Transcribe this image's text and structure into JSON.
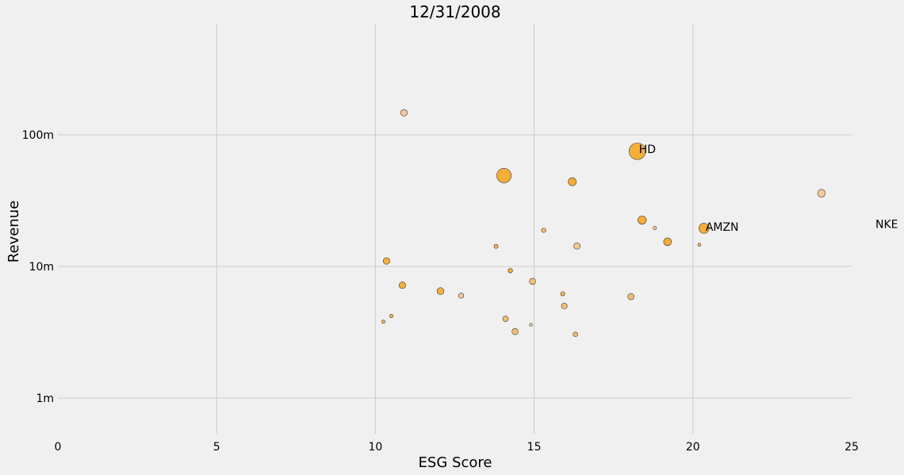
{
  "chart_data": {
    "type": "scatter",
    "title": "12/31/2008",
    "xlabel": "ESG Score",
    "ylabel": "Revenue",
    "xlim": [
      0,
      25
    ],
    "ylim": [
      500000,
      700000000
    ],
    "yscale": "log",
    "grid": true,
    "x_ticks": [
      0,
      5,
      10,
      15,
      20,
      25
    ],
    "x_tick_labels": [
      "0",
      "5",
      "10",
      "15",
      "20",
      "25"
    ],
    "y_ticks": [
      1000000,
      10000000,
      100000000
    ],
    "y_tick_labels": [
      "1m",
      "10m",
      "100m"
    ],
    "colors": {
      "strong": "#f5a623",
      "light": "#f2c79a",
      "background": "#f0f0f0",
      "grid": "#cbcbcb"
    },
    "points": [
      {
        "x": 10.9,
        "y": 147000000,
        "size": 0.3,
        "tone": 0.1
      },
      {
        "x": 18.25,
        "y": 75000000,
        "size": 1.0,
        "tone": 1.0
      },
      {
        "x": 14.05,
        "y": 49000000,
        "size": 0.85,
        "tone": 1.0
      },
      {
        "x": 16.2,
        "y": 44000000,
        "size": 0.4,
        "tone": 1.0
      },
      {
        "x": 24.05,
        "y": 36000000,
        "size": 0.38,
        "tone": 0.1
      },
      {
        "x": 18.4,
        "y": 22500000,
        "size": 0.42,
        "tone": 1.0
      },
      {
        "x": 20.35,
        "y": 19500000,
        "size": 0.55,
        "tone": 1.0
      },
      {
        "x": 18.8,
        "y": 19600000,
        "size": 0.08,
        "tone": 0.1
      },
      {
        "x": 15.3,
        "y": 18800000,
        "size": 0.14,
        "tone": 0.5
      },
      {
        "x": 19.2,
        "y": 15400000,
        "size": 0.38,
        "tone": 1.0
      },
      {
        "x": 20.2,
        "y": 14600000,
        "size": 0.05,
        "tone": 0.9
      },
      {
        "x": 16.35,
        "y": 14300000,
        "size": 0.28,
        "tone": 0.15
      },
      {
        "x": 13.8,
        "y": 14200000,
        "size": 0.12,
        "tone": 0.8
      },
      {
        "x": 10.35,
        "y": 11000000,
        "size": 0.3,
        "tone": 1.0
      },
      {
        "x": 14.25,
        "y": 9300000,
        "size": 0.15,
        "tone": 1.0
      },
      {
        "x": 14.95,
        "y": 7700000,
        "size": 0.27,
        "tone": 0.4
      },
      {
        "x": 10.85,
        "y": 7200000,
        "size": 0.3,
        "tone": 1.0
      },
      {
        "x": 12.05,
        "y": 6500000,
        "size": 0.32,
        "tone": 0.9
      },
      {
        "x": 15.9,
        "y": 6200000,
        "size": 0.13,
        "tone": 0.8
      },
      {
        "x": 12.7,
        "y": 6000000,
        "size": 0.2,
        "tone": 0.1
      },
      {
        "x": 18.05,
        "y": 5900000,
        "size": 0.28,
        "tone": 0.45
      },
      {
        "x": 15.95,
        "y": 5000000,
        "size": 0.24,
        "tone": 0.4
      },
      {
        "x": 10.5,
        "y": 4200000,
        "size": 0.08,
        "tone": 0.7
      },
      {
        "x": 14.1,
        "y": 4000000,
        "size": 0.22,
        "tone": 0.45
      },
      {
        "x": 10.25,
        "y": 3800000,
        "size": 0.08,
        "tone": 0.7
      },
      {
        "x": 14.9,
        "y": 3600000,
        "size": 0.04,
        "tone": 0.1
      },
      {
        "x": 14.4,
        "y": 3200000,
        "size": 0.27,
        "tone": 0.45
      },
      {
        "x": 16.3,
        "y": 3050000,
        "size": 0.16,
        "tone": 0.45
      }
    ],
    "annotations": [
      {
        "text": "HD",
        "x": 18.3,
        "y": 77000000
      },
      {
        "text": "AMZN",
        "x": 20.4,
        "y": 19800000
      },
      {
        "text": "NKE",
        "x": 25.75,
        "y": 20700000
      }
    ]
  }
}
